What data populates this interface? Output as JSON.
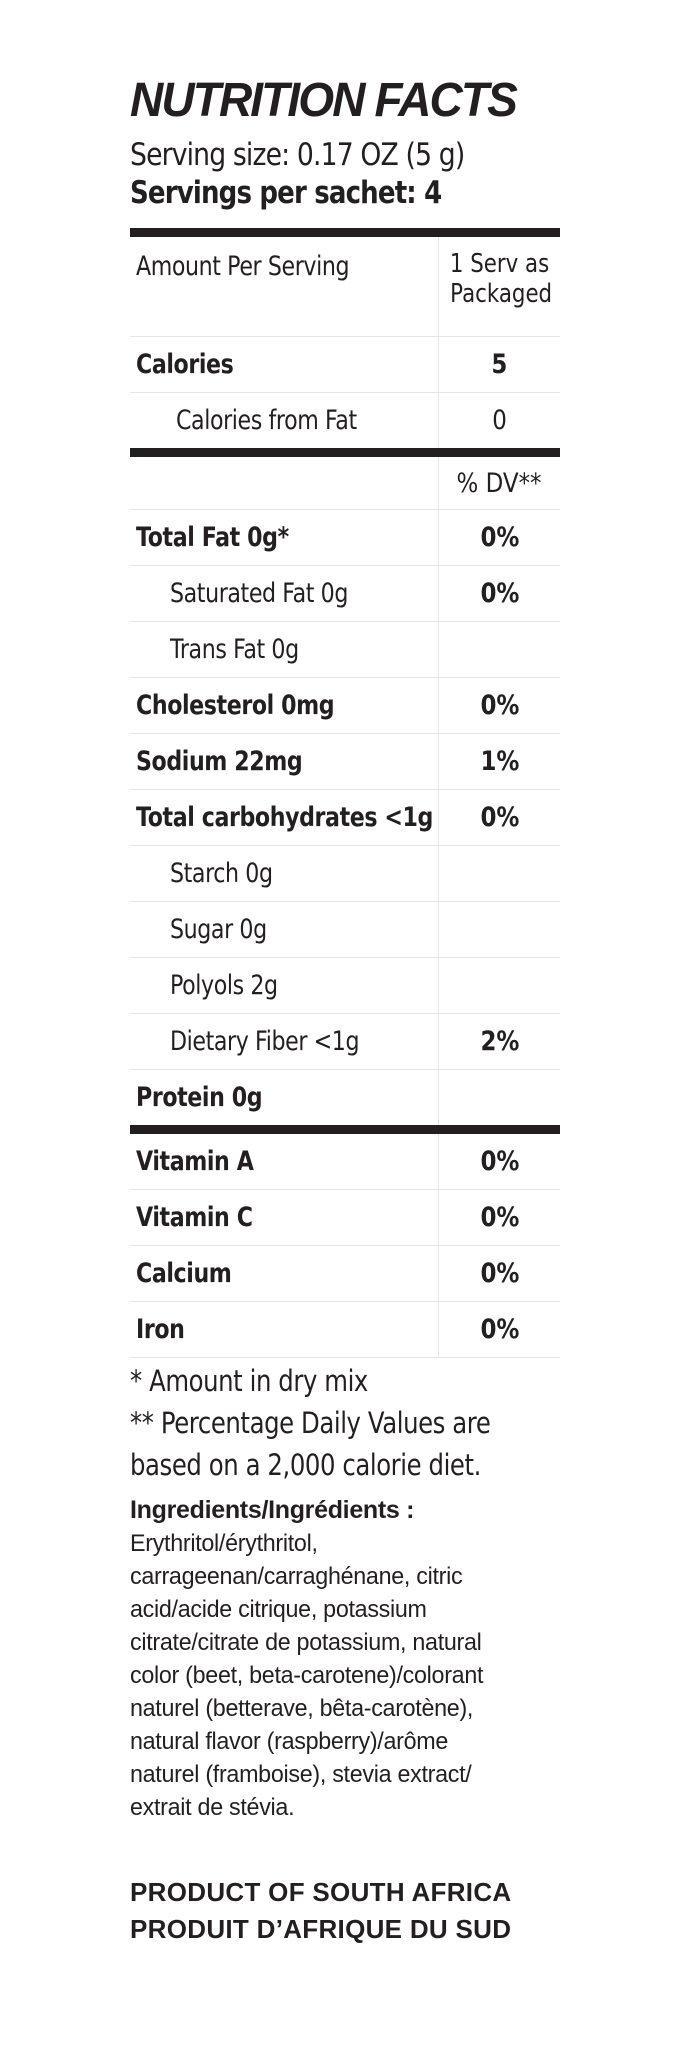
{
  "label": {
    "title": "NUTRITION FACTS",
    "serving_size": "Serving size: 0.17 OZ (5 g)",
    "servings_per": "Servings per sachet: 4",
    "header": {
      "amount_label": "Amount Per Serving",
      "serving_line1": "1 Serv as",
      "serving_line2": "Packaged"
    },
    "calories": {
      "label": "Calories",
      "value": "5"
    },
    "calories_fat": {
      "label": "Calories from Fat",
      "value": "0"
    },
    "dv_header": "% DV**",
    "nutrients": [
      {
        "label": "Total Fat  0g*",
        "value": "0%"
      },
      {
        "label": "Saturated Fat  0g",
        "value": "0%"
      },
      {
        "label": "Trans Fat  0g",
        "value": ""
      },
      {
        "label": "Cholesterol  0mg",
        "value": "0%"
      },
      {
        "label": "Sodium  22mg",
        "value": "1%"
      },
      {
        "label": "Total carbohydrates <1g",
        "value": "0%"
      },
      {
        "label": "Starch  0g",
        "value": ""
      },
      {
        "label": "Sugar  0g",
        "value": ""
      },
      {
        "label": "Polyols  2g",
        "value": ""
      },
      {
        "label": "Dietary Fiber  <1g",
        "value": "2%"
      },
      {
        "label": "Protein  0g",
        "value": ""
      }
    ],
    "vitamins": [
      {
        "label": "Vitamin A",
        "value": "0%"
      },
      {
        "label": "Vitamin C",
        "value": "0%"
      },
      {
        "label": "Calcium",
        "value": "0%"
      },
      {
        "label": "Iron",
        "value": "0%"
      }
    ],
    "footnotes": [
      "* Amount in dry mix",
      "** Percentage Daily Values are",
      "based on a 2,000 calorie diet."
    ],
    "ingredients_title": "Ingredients/Ingrédients :",
    "ingredients_lines": [
      "Erythritol/érythritol,",
      "carrageenan/carraghénane, citric",
      "acid/acide citrique, potassium",
      "citrate/citrate de potassium, natural",
      "color (beet, beta-carotene)/colorant",
      "naturel (betterave, bêta-carotène),",
      "natural flavor (raspberry)/arôme",
      "naturel (framboise), stevia extract/",
      "extrait de stévia."
    ],
    "origin_en": "PRODUCT OF SOUTH AFRICA",
    "origin_fr": "PRODUIT D’AFRIQUE DU SUD"
  }
}
